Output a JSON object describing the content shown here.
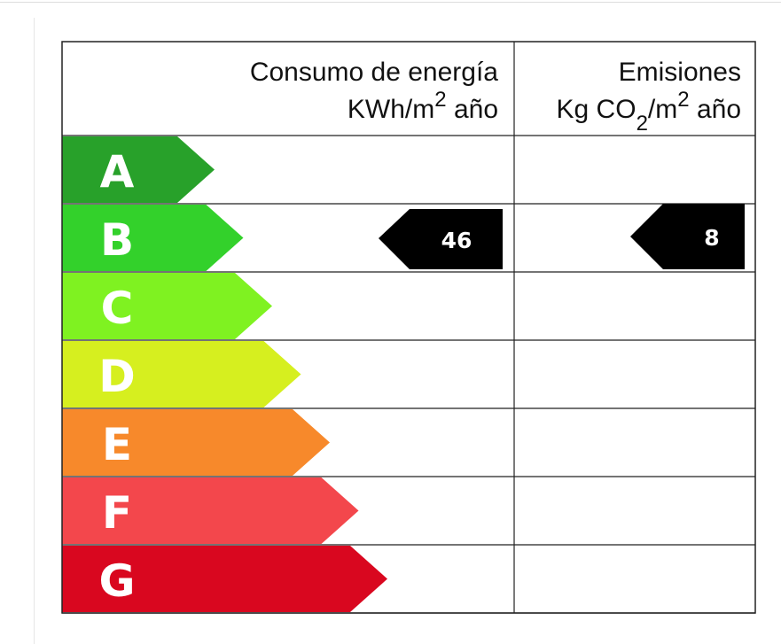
{
  "header": {
    "consumption_title": "Consumo de energía",
    "consumption_unit": [
      "KWh/m",
      "2",
      " año"
    ],
    "emissions_title": "Emisiones",
    "emissions_unit": [
      "Kg CO",
      "2",
      "/m",
      "2",
      " año"
    ]
  },
  "rows": [
    {
      "letter": "A",
      "color": "#28a12a"
    },
    {
      "letter": "B",
      "color": "#33d12b",
      "consumption": 46,
      "emissions": 8
    },
    {
      "letter": "C",
      "color": "#7ff221"
    },
    {
      "letter": "D",
      "color": "#d6ef1f"
    },
    {
      "letter": "E",
      "color": "#f7892b"
    },
    {
      "letter": "F",
      "color": "#f3474c"
    },
    {
      "letter": "G",
      "color": "#d9071f"
    }
  ]
}
